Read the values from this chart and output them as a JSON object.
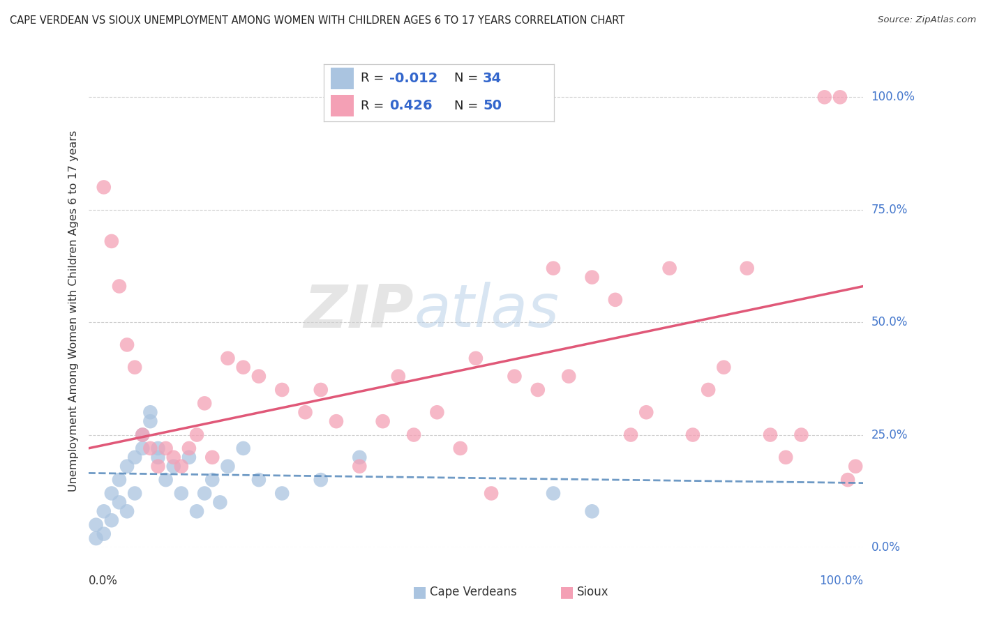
{
  "title": "CAPE VERDEAN VS SIOUX UNEMPLOYMENT AMONG WOMEN WITH CHILDREN AGES 6 TO 17 YEARS CORRELATION CHART",
  "source": "Source: ZipAtlas.com",
  "ylabel": "Unemployment Among Women with Children Ages 6 to 17 years",
  "watermark_zip": "ZIP",
  "watermark_atlas": "atlas",
  "legend_cape_R": "-0.012",
  "legend_cape_N": "34",
  "legend_sioux_R": "0.426",
  "legend_sioux_N": "50",
  "ytick_labels": [
    "0.0%",
    "25.0%",
    "50.0%",
    "75.0%",
    "100.0%"
  ],
  "ytick_values": [
    0,
    25,
    50,
    75,
    100
  ],
  "xlim": [
    0,
    100
  ],
  "ylim": [
    0,
    105
  ],
  "cape_verdean_x": [
    1,
    1,
    2,
    2,
    3,
    3,
    4,
    4,
    5,
    5,
    6,
    6,
    7,
    7,
    8,
    8,
    9,
    9,
    10,
    11,
    12,
    13,
    14,
    15,
    16,
    17,
    18,
    20,
    22,
    25,
    30,
    35,
    60,
    65
  ],
  "cape_verdean_y": [
    2,
    5,
    3,
    8,
    6,
    12,
    10,
    15,
    8,
    18,
    12,
    20,
    25,
    22,
    30,
    28,
    20,
    22,
    15,
    18,
    12,
    20,
    8,
    12,
    15,
    10,
    18,
    22,
    15,
    12,
    15,
    20,
    12,
    8
  ],
  "sioux_x": [
    2,
    3,
    4,
    5,
    6,
    7,
    8,
    9,
    10,
    11,
    12,
    13,
    14,
    15,
    16,
    18,
    20,
    22,
    25,
    28,
    30,
    32,
    35,
    38,
    40,
    42,
    45,
    48,
    50,
    52,
    55,
    58,
    60,
    62,
    65,
    68,
    70,
    72,
    75,
    78,
    80,
    82,
    85,
    88,
    90,
    92,
    95,
    97,
    98,
    99
  ],
  "sioux_y": [
    80,
    68,
    58,
    45,
    40,
    25,
    22,
    18,
    22,
    20,
    18,
    22,
    25,
    32,
    20,
    42,
    40,
    38,
    35,
    30,
    35,
    28,
    18,
    28,
    38,
    25,
    30,
    22,
    42,
    12,
    38,
    35,
    62,
    38,
    60,
    55,
    25,
    30,
    62,
    25,
    35,
    40,
    62,
    25,
    20,
    25,
    100,
    100,
    15,
    18
  ],
  "cape_verdean_line_x": [
    0,
    100
  ],
  "cape_verdean_line_y": [
    16.5,
    14.3
  ],
  "sioux_line_x": [
    0,
    100
  ],
  "sioux_line_y": [
    22,
    58
  ],
  "background_color": "#ffffff",
  "grid_color": "#bbbbbb",
  "cape_verdean_dot_color": "#aac4e0",
  "sioux_dot_color": "#f4a0b5",
  "cape_verdean_line_color": "#5588bb",
  "sioux_line_color": "#e05878",
  "title_color": "#222222",
  "source_color": "#444444",
  "axis_label_color": "#333333",
  "tick_right_color": "#4477cc",
  "legend_value_color": "#3366cc",
  "legend_border_color": "#cccccc",
  "bottom_legend_cape_color": "#aac4e0",
  "bottom_legend_sioux_color": "#f4a0b5"
}
